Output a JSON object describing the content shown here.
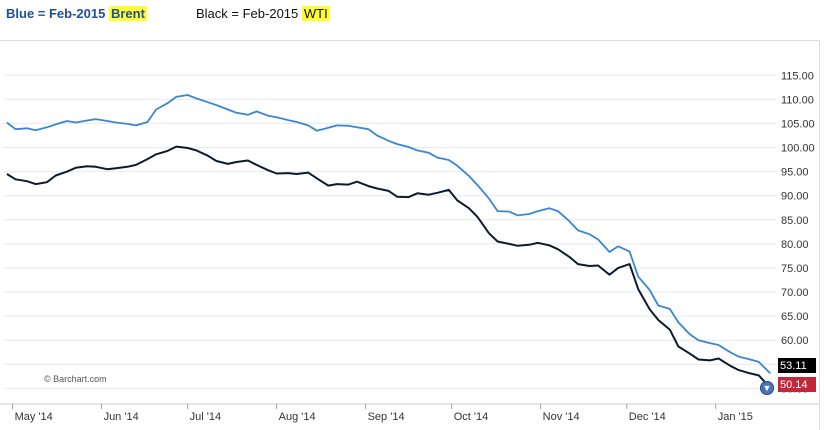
{
  "captions": {
    "blue_prefix": "Blue = Feb-2015",
    "blue_highlight": "Brent",
    "black_prefix": "Black = Feb-2015",
    "black_highlight": "WTI"
  },
  "colors": {
    "brent": "#3b86d4",
    "wti": "#0f1b2d",
    "highlight": "#ffff33",
    "brent_label_bg": "#000000",
    "wti_label_bg": "#c0283c",
    "grid": "#e6e9ee"
  },
  "watermark": "© Barchart.com",
  "scroll_icon": "chevron-down-icon",
  "chart_data": {
    "type": "line",
    "ylim": [
      48,
      119
    ],
    "grid": true,
    "yticks": [
      50,
      55,
      60,
      65,
      70,
      75,
      80,
      85,
      90,
      95,
      100,
      105,
      110,
      115
    ],
    "ytick_labels": [
      "50.00",
      "55.00",
      "60.00",
      "65.00",
      "70.00",
      "75.00",
      "80.00",
      "85.00",
      "90.00",
      "95.00",
      "100.00",
      "105.00",
      "110.00",
      "115.00"
    ],
    "xticks": [
      {
        "label": "May '14",
        "date": "2014-05-01"
      },
      {
        "label": "Jun '14",
        "date": "2014-06-01"
      },
      {
        "label": "Jul '14",
        "date": "2014-07-01"
      },
      {
        "label": "Aug '14",
        "date": "2014-08-01"
      },
      {
        "label": "Sep '14",
        "date": "2014-09-01"
      },
      {
        "label": "Oct '14",
        "date": "2014-10-01"
      },
      {
        "label": "Nov '14",
        "date": "2014-11-01"
      },
      {
        "label": "Dec '14",
        "date": "2014-12-01"
      },
      {
        "label": "Jan '15",
        "date": "2015-01-01"
      }
    ],
    "last_labels": {
      "brent": "53.11",
      "wti": "50.14"
    },
    "series": [
      {
        "key": "brent",
        "points": [
          [
            "2014-04-29",
            105.2
          ],
          [
            "2014-05-02",
            103.8
          ],
          [
            "2014-05-06",
            104.0
          ],
          [
            "2014-05-09",
            103.6
          ],
          [
            "2014-05-13",
            104.2
          ],
          [
            "2014-05-16",
            104.8
          ],
          [
            "2014-05-20",
            105.5
          ],
          [
            "2014-05-23",
            105.2
          ],
          [
            "2014-05-27",
            105.6
          ],
          [
            "2014-05-30",
            105.9
          ],
          [
            "2014-06-03",
            105.5
          ],
          [
            "2014-06-06",
            105.2
          ],
          [
            "2014-06-10",
            104.9
          ],
          [
            "2014-06-13",
            104.6
          ],
          [
            "2014-06-17",
            105.3
          ],
          [
            "2014-06-20",
            107.9
          ],
          [
            "2014-06-24",
            109.2
          ],
          [
            "2014-06-27",
            110.5
          ],
          [
            "2014-07-01",
            110.9
          ],
          [
            "2014-07-04",
            110.2
          ],
          [
            "2014-07-08",
            109.4
          ],
          [
            "2014-07-11",
            108.8
          ],
          [
            "2014-07-15",
            107.9
          ],
          [
            "2014-07-18",
            107.2
          ],
          [
            "2014-07-22",
            106.8
          ],
          [
            "2014-07-25",
            107.5
          ],
          [
            "2014-07-29",
            106.6
          ],
          [
            "2014-08-01",
            106.3
          ],
          [
            "2014-08-05",
            105.7
          ],
          [
            "2014-08-08",
            105.3
          ],
          [
            "2014-08-12",
            104.6
          ],
          [
            "2014-08-15",
            103.5
          ],
          [
            "2014-08-19",
            104.1
          ],
          [
            "2014-08-22",
            104.6
          ],
          [
            "2014-08-26",
            104.5
          ],
          [
            "2014-08-29",
            104.2
          ],
          [
            "2014-09-02",
            103.8
          ],
          [
            "2014-09-05",
            102.5
          ],
          [
            "2014-09-09",
            101.4
          ],
          [
            "2014-09-12",
            100.7
          ],
          [
            "2014-09-16",
            100.1
          ],
          [
            "2014-09-19",
            99.4
          ],
          [
            "2014-09-23",
            98.9
          ],
          [
            "2014-09-26",
            97.9
          ],
          [
            "2014-09-30",
            97.4
          ],
          [
            "2014-10-03",
            96.2
          ],
          [
            "2014-10-07",
            94.1
          ],
          [
            "2014-10-10",
            92.2
          ],
          [
            "2014-10-14",
            89.4
          ],
          [
            "2014-10-17",
            86.8
          ],
          [
            "2014-10-21",
            86.7
          ],
          [
            "2014-10-24",
            85.9
          ],
          [
            "2014-10-28",
            86.2
          ],
          [
            "2014-10-31",
            86.8
          ],
          [
            "2014-11-04",
            87.4
          ],
          [
            "2014-11-07",
            86.8
          ],
          [
            "2014-11-11",
            84.7
          ],
          [
            "2014-11-14",
            82.8
          ],
          [
            "2014-11-18",
            82.0
          ],
          [
            "2014-11-21",
            80.9
          ],
          [
            "2014-11-25",
            78.3
          ],
          [
            "2014-11-28",
            79.5
          ],
          [
            "2014-12-02",
            78.4
          ],
          [
            "2014-12-05",
            73.2
          ],
          [
            "2014-12-09",
            70.4
          ],
          [
            "2014-12-12",
            67.2
          ],
          [
            "2014-12-16",
            66.5
          ],
          [
            "2014-12-19",
            63.7
          ],
          [
            "2014-12-23",
            61.2
          ],
          [
            "2014-12-26",
            60.0
          ],
          [
            "2014-12-30",
            59.4
          ],
          [
            "2015-01-02",
            59.0
          ],
          [
            "2015-01-06",
            57.5
          ],
          [
            "2015-01-09",
            56.6
          ],
          [
            "2015-01-13",
            56.0
          ],
          [
            "2015-01-16",
            55.5
          ],
          [
            "2015-01-20",
            53.1
          ]
        ]
      },
      {
        "key": "wti",
        "points": [
          [
            "2014-04-29",
            94.5
          ],
          [
            "2014-05-02",
            93.4
          ],
          [
            "2014-05-06",
            93.0
          ],
          [
            "2014-05-09",
            92.4
          ],
          [
            "2014-05-13",
            92.8
          ],
          [
            "2014-05-16",
            94.2
          ],
          [
            "2014-05-20",
            95.0
          ],
          [
            "2014-05-23",
            95.8
          ],
          [
            "2014-05-27",
            96.1
          ],
          [
            "2014-05-30",
            96.0
          ],
          [
            "2014-06-03",
            95.5
          ],
          [
            "2014-06-06",
            95.7
          ],
          [
            "2014-06-10",
            96.0
          ],
          [
            "2014-06-13",
            96.4
          ],
          [
            "2014-06-17",
            97.6
          ],
          [
            "2014-06-20",
            98.6
          ],
          [
            "2014-06-24",
            99.3
          ],
          [
            "2014-06-27",
            100.2
          ],
          [
            "2014-07-01",
            99.9
          ],
          [
            "2014-07-04",
            99.4
          ],
          [
            "2014-07-08",
            98.3
          ],
          [
            "2014-07-11",
            97.2
          ],
          [
            "2014-07-15",
            96.6
          ],
          [
            "2014-07-18",
            97.0
          ],
          [
            "2014-07-22",
            97.3
          ],
          [
            "2014-07-25",
            96.4
          ],
          [
            "2014-07-29",
            95.3
          ],
          [
            "2014-08-01",
            94.6
          ],
          [
            "2014-08-05",
            94.7
          ],
          [
            "2014-08-08",
            94.5
          ],
          [
            "2014-08-12",
            94.8
          ],
          [
            "2014-08-15",
            93.6
          ],
          [
            "2014-08-19",
            92.1
          ],
          [
            "2014-08-22",
            92.4
          ],
          [
            "2014-08-26",
            92.3
          ],
          [
            "2014-08-29",
            92.9
          ],
          [
            "2014-09-02",
            92.0
          ],
          [
            "2014-09-05",
            91.5
          ],
          [
            "2014-09-09",
            91.0
          ],
          [
            "2014-09-12",
            89.8
          ],
          [
            "2014-09-16",
            89.7
          ],
          [
            "2014-09-19",
            90.5
          ],
          [
            "2014-09-23",
            90.2
          ],
          [
            "2014-09-26",
            90.6
          ],
          [
            "2014-09-30",
            91.2
          ],
          [
            "2014-10-03",
            89.0
          ],
          [
            "2014-10-07",
            87.4
          ],
          [
            "2014-10-10",
            85.6
          ],
          [
            "2014-10-14",
            82.2
          ],
          [
            "2014-10-17",
            80.5
          ],
          [
            "2014-10-21",
            80.0
          ],
          [
            "2014-10-24",
            79.6
          ],
          [
            "2014-10-28",
            79.8
          ],
          [
            "2014-10-31",
            80.2
          ],
          [
            "2014-11-04",
            79.7
          ],
          [
            "2014-11-07",
            78.9
          ],
          [
            "2014-11-11",
            77.3
          ],
          [
            "2014-11-14",
            75.8
          ],
          [
            "2014-11-18",
            75.4
          ],
          [
            "2014-11-21",
            75.5
          ],
          [
            "2014-11-25",
            73.6
          ],
          [
            "2014-11-28",
            75.0
          ],
          [
            "2014-12-02",
            75.8
          ],
          [
            "2014-12-05",
            70.6
          ],
          [
            "2014-12-09",
            66.4
          ],
          [
            "2014-12-12",
            64.2
          ],
          [
            "2014-12-16",
            62.2
          ],
          [
            "2014-12-19",
            58.7
          ],
          [
            "2014-12-23",
            57.2
          ],
          [
            "2014-12-26",
            56.0
          ],
          [
            "2014-12-30",
            55.8
          ],
          [
            "2015-01-02",
            56.2
          ],
          [
            "2015-01-06",
            54.7
          ],
          [
            "2015-01-09",
            53.8
          ],
          [
            "2015-01-13",
            53.1
          ],
          [
            "2015-01-16",
            52.7
          ],
          [
            "2015-01-20",
            50.1
          ]
        ]
      }
    ]
  }
}
